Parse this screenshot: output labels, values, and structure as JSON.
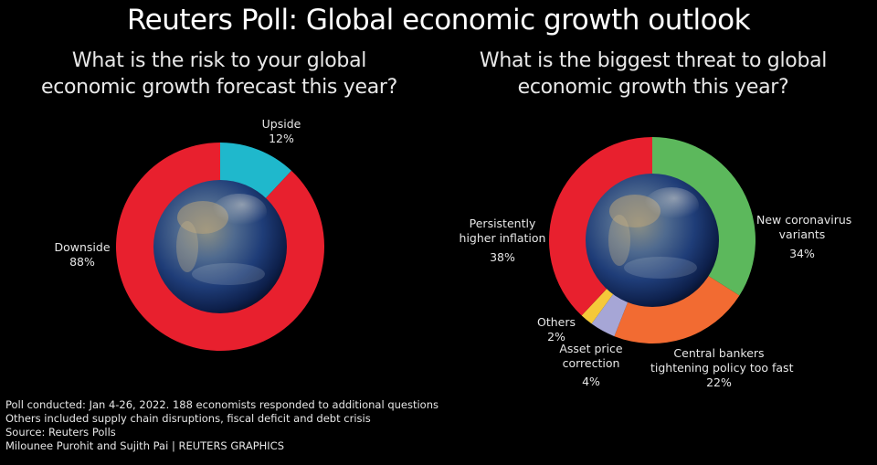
{
  "title": "Reuters Poll: Global economic growth outlook",
  "colors": {
    "background": "#000000",
    "red": "#e8202e",
    "cyan": "#1fb8cc",
    "green": "#5cb85c",
    "orange": "#f26b32",
    "lavender": "#a6a6d6",
    "yellow": "#f5c93a"
  },
  "left_chart": {
    "question_line1": "What is the risk to your global",
    "question_line2": "economic growth forecast this year?",
    "labels": {
      "upside_name": "Upside",
      "upside_value": "12%",
      "downside_name": "Downside",
      "downside_value": "88%"
    }
  },
  "right_chart": {
    "question_line1": "What is the biggest threat to global",
    "question_line2": "economic growth this year?",
    "labels": {
      "inflation_line1": "Persistently",
      "inflation_line2": "higher inflation",
      "inflation_value": "38%",
      "covid_line1": "New coronavirus",
      "covid_line2": "variants",
      "covid_value": "34%",
      "central_line1": "Central bankers",
      "central_line2": "tightening policy too fast",
      "central_value": "22%",
      "asset_line1": "Asset price",
      "asset_line2": "correction",
      "asset_value": "4%",
      "others_name": "Others",
      "others_value": "2%"
    }
  },
  "footer": {
    "line1": "Poll conducted: Jan 4-26, 2022. 188 economists responded to additional questions",
    "line2": "Others included supply chain disruptions, fiscal deficit and debt crisis",
    "line3": "Source: Reuters Polls",
    "line4": "Milounee Purohit and Sujith Pai | REUTERS GRAPHICS"
  },
  "chart_data": [
    {
      "type": "pie",
      "title": "What is the risk to your global economic growth forecast this year?",
      "categories": [
        "Upside",
        "Downside"
      ],
      "values": [
        12,
        88
      ],
      "colors": [
        "#1fb8cc",
        "#e8202e"
      ],
      "donut": true,
      "start_angle": "12 o'clock, clockwise",
      "unit": "%"
    },
    {
      "type": "pie",
      "title": "What is the biggest threat to global economic growth this year?",
      "categories": [
        "New coronavirus variants",
        "Central bankers tightening policy too fast",
        "Asset price correction",
        "Others",
        "Persistently higher inflation"
      ],
      "values": [
        34,
        22,
        4,
        2,
        38
      ],
      "colors": [
        "#5cb85c",
        "#f26b32",
        "#a6a6d6",
        "#f5c93a",
        "#e8202e"
      ],
      "donut": true,
      "start_angle": "12 o'clock, clockwise",
      "unit": "%"
    }
  ]
}
